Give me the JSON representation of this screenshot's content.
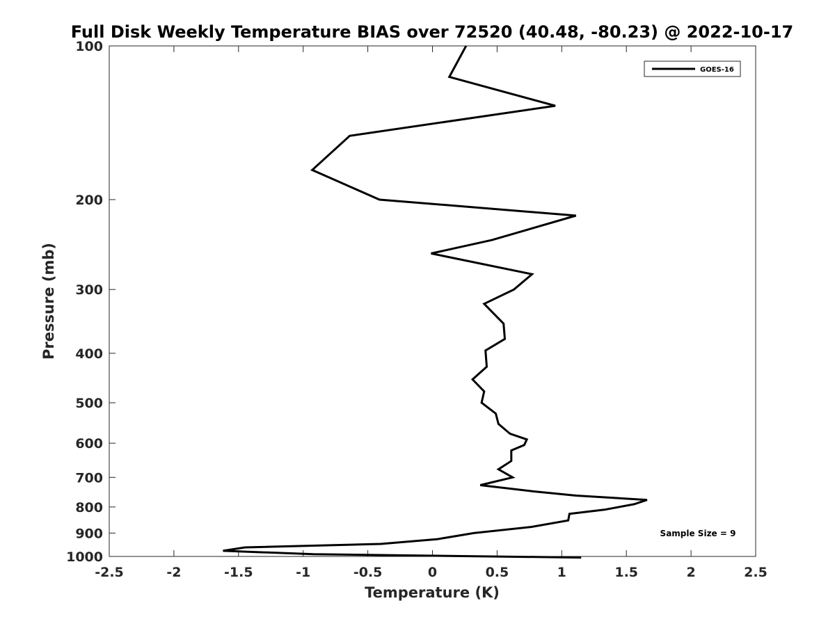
{
  "chart_data": {
    "type": "line",
    "title": "Full Disk Weekly Temperature BIAS over 72520 (40.48, -80.23) @ 2022-10-17",
    "xlabel": "Temperature (K)",
    "ylabel": "Pressure (mb)",
    "xlim": [
      -2.5,
      2.5
    ],
    "ylim": [
      1000,
      100
    ],
    "yscale": "log",
    "xticks": [
      -2.5,
      -2,
      -1.5,
      -1,
      -0.5,
      0,
      0.5,
      1,
      1.5,
      2,
      2.5
    ],
    "xtick_labels": [
      "-2.5",
      "-2",
      "-1.5",
      "-1",
      "-0.5",
      "0",
      "0.5",
      "1",
      "1.5",
      "2",
      "2.5"
    ],
    "yticks": [
      100,
      200,
      300,
      400,
      500,
      600,
      700,
      800,
      900,
      1000
    ],
    "ytick_labels": [
      "100",
      "200",
      "300",
      "400",
      "500",
      "600",
      "700",
      "800",
      "900",
      "1000"
    ],
    "grid": false,
    "legend": {
      "position": "top-right",
      "entries": [
        "GOES-16"
      ]
    },
    "annotation": "Sample Size = 9",
    "series": [
      {
        "name": "GOES-16",
        "color": "#000000",
        "x": [
          0.26,
          0.13,
          0.95,
          -0.64,
          -0.93,
          -0.41,
          1.11,
          0.46,
          -0.01,
          0.77,
          0.63,
          0.4,
          0.55,
          0.56,
          0.41,
          0.42,
          0.31,
          0.4,
          0.38,
          0.49,
          0.51,
          0.6,
          0.73,
          0.71,
          0.61,
          0.61,
          0.51,
          0.62,
          0.37,
          0.77,
          1.11,
          1.66,
          1.56,
          1.33,
          1.06,
          1.05,
          0.77,
          0.32,
          0.04,
          -0.4,
          -1.45,
          -1.62,
          -0.92,
          1.15
        ],
        "y": [
          100,
          115,
          131,
          150,
          175,
          200,
          215,
          240,
          255,
          280,
          300,
          320,
          350,
          375,
          395,
          425,
          450,
          475,
          500,
          525,
          550,
          575,
          590,
          605,
          620,
          650,
          675,
          700,
          725,
          745,
          760,
          775,
          790,
          810,
          825,
          850,
          875,
          900,
          925,
          945,
          960,
          975,
          990,
          1005
        ]
      }
    ]
  }
}
